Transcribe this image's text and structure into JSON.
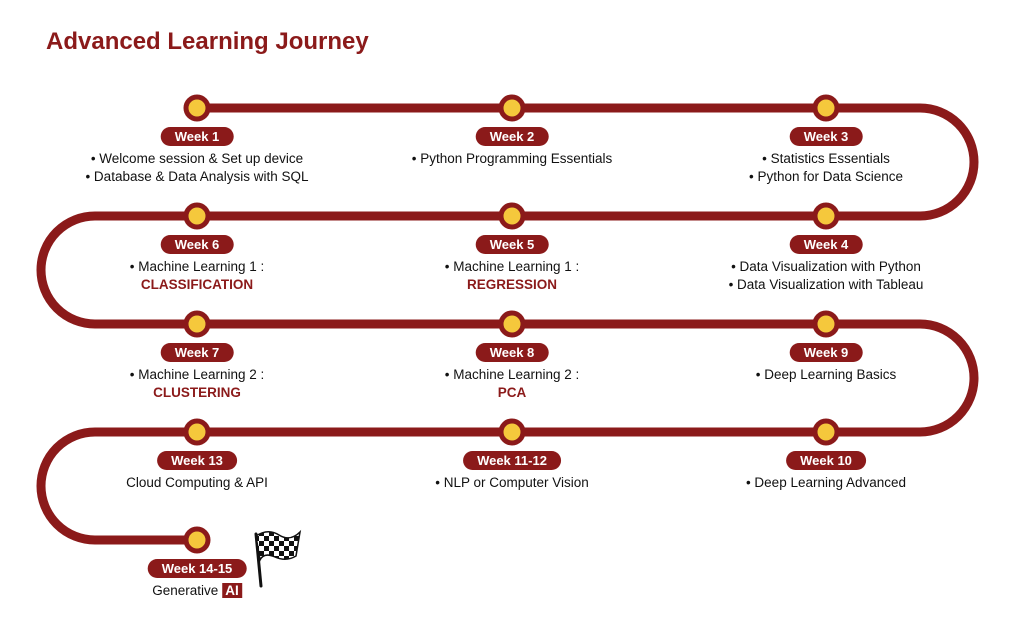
{
  "title": "Advanced Learning Journey",
  "colors": {
    "track": "#8b1a1a",
    "node_fill": "#f5c83c",
    "badge_bg": "#8b1a1a",
    "badge_text": "#ffffff"
  },
  "weeks": [
    {
      "label": "Week 1",
      "lines": [
        "• Welcome session & Set up device",
        "• Database & Data Analysis with SQL"
      ]
    },
    {
      "label": "Week 2",
      "lines": [
        "• Python Programming Essentials"
      ]
    },
    {
      "label": "Week 3",
      "lines": [
        "• Statistics Essentials",
        "• Python for Data Science"
      ]
    },
    {
      "label": "Week 4",
      "lines": [
        "• Data Visualization with Python",
        "• Data Visualization with Tableau"
      ]
    },
    {
      "label": "Week 5",
      "lines": [
        "• Machine Learning 1 :"
      ],
      "highlight": "REGRESSION"
    },
    {
      "label": "Week 6",
      "lines": [
        "• Machine Learning 1 :"
      ],
      "highlight": "CLASSIFICATION"
    },
    {
      "label": "Week 7",
      "lines": [
        "• Machine Learning 2 :"
      ],
      "highlight": "CLUSTERING"
    },
    {
      "label": "Week 8",
      "lines": [
        "• Machine Learning 2 :"
      ],
      "highlight": "PCA"
    },
    {
      "label": "Week 9",
      "lines": [
        "• Deep Learning Basics"
      ]
    },
    {
      "label": "Week 10",
      "lines": [
        "• Deep Learning Advanced"
      ]
    },
    {
      "label": "Week 11-12",
      "lines": [
        "• NLP or Computer Vision"
      ]
    },
    {
      "label": "Week 13",
      "lines": [
        "Cloud Computing & API"
      ]
    },
    {
      "label": "Week 14-15",
      "text": "Generative",
      "tag": "AI",
      "finish_icon": "checkered-flag-icon"
    }
  ]
}
